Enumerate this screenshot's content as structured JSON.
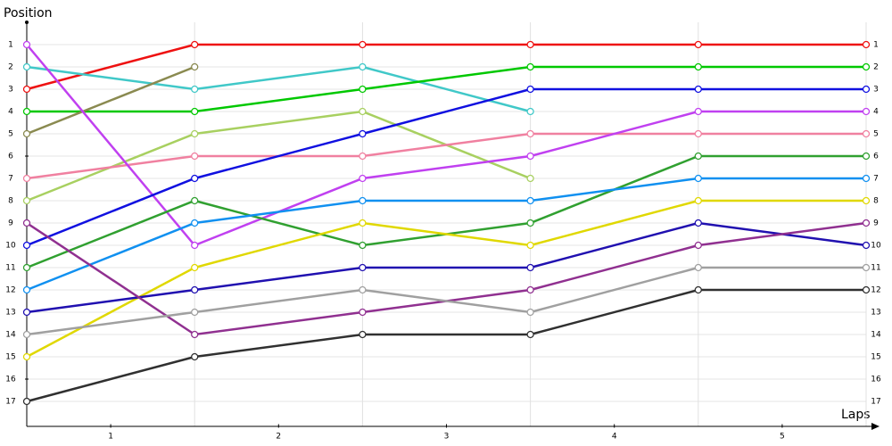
{
  "chart_data": {
    "type": "line",
    "xlabel": "Laps",
    "ylabel": "Position",
    "x": [
      0,
      1,
      2,
      3,
      4,
      5
    ],
    "xlim": [
      0,
      5
    ],
    "xticks": [
      {
        "value": 0.5,
        "label": "1"
      },
      {
        "value": 1.5,
        "label": "2"
      },
      {
        "value": 2.5,
        "label": "3"
      },
      {
        "value": 3.5,
        "label": "4"
      },
      {
        "value": 4.5,
        "label": "5"
      }
    ],
    "ylim": [
      18.1,
      0
    ],
    "yticks": [
      1,
      2,
      3,
      4,
      5,
      6,
      7,
      8,
      9,
      10,
      11,
      12,
      13,
      14,
      15,
      16,
      17
    ],
    "grid": true,
    "series": [
      {
        "color": "#ee1111",
        "values": [
          3,
          1,
          1,
          1,
          1,
          1
        ]
      },
      {
        "color": "#40c8c8",
        "values": [
          2,
          3,
          2,
          4,
          null,
          null
        ]
      },
      {
        "color": "#00c800",
        "values": [
          4,
          4,
          3,
          2,
          2,
          2
        ]
      },
      {
        "color": "#8a8a50",
        "values": [
          5,
          2,
          null,
          null,
          null,
          null
        ]
      },
      {
        "color": "#a8d060",
        "values": [
          8,
          5,
          4,
          7,
          null,
          null
        ]
      },
      {
        "color": "#f080a0",
        "values": [
          7,
          6,
          6,
          5,
          5,
          5
        ]
      },
      {
        "color": "#c040f0",
        "values": [
          1,
          10,
          7,
          6,
          4,
          4
        ]
      },
      {
        "color": "#1010e0",
        "values": [
          10,
          7,
          5,
          3,
          3,
          3
        ]
      },
      {
        "color": "#30a030",
        "values": [
          11,
          8,
          10,
          9,
          6,
          6
        ]
      },
      {
        "color": "#1090f0",
        "values": [
          12,
          9,
          8,
          8,
          7,
          7
        ]
      },
      {
        "color": "#e0d800",
        "values": [
          15,
          11,
          9,
          10,
          8,
          8
        ]
      },
      {
        "color": "#2010b0",
        "values": [
          13,
          12,
          11,
          11,
          9,
          10
        ]
      },
      {
        "color": "#903090",
        "values": [
          9,
          14,
          13,
          12,
          10,
          9
        ]
      },
      {
        "color": "#a0a0a0",
        "values": [
          14,
          13,
          12,
          13,
          11,
          11
        ]
      },
      {
        "color": "#303030",
        "values": [
          17,
          15,
          14,
          14,
          12,
          12
        ]
      }
    ]
  }
}
